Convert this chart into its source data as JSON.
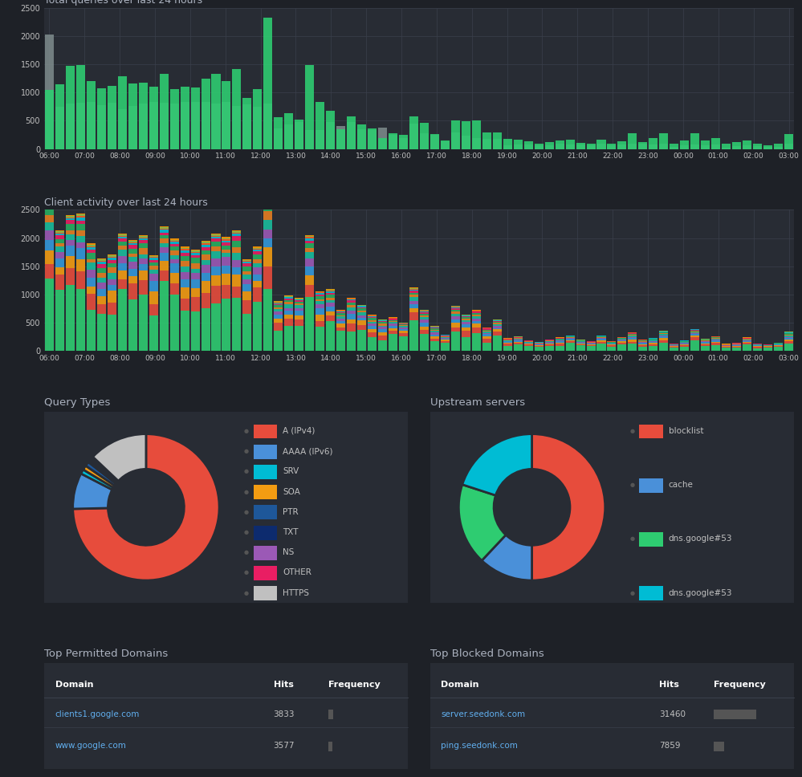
{
  "bg_color": "#1e2127",
  "panel_bg": "#282c34",
  "panel_border": "#3a3f4b",
  "text_color": "#c0c0c0",
  "title_color": "#abb2bf",
  "link_color": "#61afef",
  "grid_color": "#3a3f4b",
  "chart1_title": "Total queries over last 24 hours",
  "chart2_title": "Client activity over last 24 hours",
  "chart3_title": "Query Types",
  "chart4_title": "Upstream servers",
  "chart5_title": "Top Permitted Domains",
  "chart6_title": "Top Blocked Domains",
  "time_labels": [
    "06:00",
    "07:00",
    "08:00",
    "09:00",
    "10:00",
    "11:00",
    "12:00",
    "13:00",
    "14:00",
    "15:00",
    "16:00",
    "17:00",
    "18:00",
    "19:00",
    "20:00",
    "21:00",
    "22:00",
    "23:00",
    "00:00",
    "01:00",
    "02:00",
    "03:00"
  ],
  "q_green": [
    1050,
    1150,
    1470,
    1490,
    1200,
    1080,
    1120,
    1290,
    1160,
    1170,
    1110,
    1330,
    1060,
    1100,
    1090,
    1250,
    1330,
    1200,
    1420,
    900,
    1060,
    2330,
    560,
    640,
    520,
    1490,
    840,
    680,
    350,
    580,
    440,
    370,
    200,
    280,
    250,
    580,
    470,
    270,
    150,
    500,
    490,
    500,
    290,
    300,
    175,
    170,
    130,
    100,
    120,
    150,
    170,
    110,
    100,
    160,
    100,
    130,
    280,
    120,
    200,
    280,
    100,
    150,
    280,
    150,
    200,
    100,
    120,
    150,
    100,
    70,
    100,
    270
  ],
  "q_gray": [
    2020,
    750,
    800,
    820,
    830,
    770,
    820,
    700,
    760,
    800,
    840,
    820,
    800,
    830,
    830,
    830,
    800,
    830,
    760,
    790,
    750,
    800,
    370,
    430,
    480,
    330,
    330,
    480,
    400,
    480,
    350,
    330,
    380,
    250,
    200,
    450,
    280,
    250,
    130,
    290,
    230,
    200,
    180,
    180,
    70,
    80,
    80,
    60,
    70,
    100,
    80,
    80,
    60,
    90,
    60,
    80,
    100,
    100,
    80,
    100,
    40,
    60,
    80,
    70,
    80,
    30,
    50,
    60,
    50,
    40,
    40,
    100
  ],
  "ca_colors": [
    "#2ecc71",
    "#e74c3c",
    "#f39c12",
    "#3498db",
    "#9b59b6",
    "#1abc9c",
    "#e67e22",
    "#27ae60",
    "#e91e63",
    "#00bcd4",
    "#ff5722",
    "#8bc34a",
    "#ff9800"
  ],
  "qt_sizes": [
    75,
    8,
    1,
    1,
    1,
    0.5,
    0.5,
    0.5,
    13
  ],
  "qt_colors": [
    "#e74c3c",
    "#4a90d9",
    "#00bcd4",
    "#f39c12",
    "#1e5799",
    "#0d2b6e",
    "#9b59b6",
    "#e91e63",
    "#c0c0c0"
  ],
  "qt_labels": [
    "A (IPv4)",
    "AAAA (IPv6)",
    "SRV",
    "SOA",
    "PTR",
    "TXT",
    "NS",
    "OTHER",
    "HTTPS"
  ],
  "us_sizes": [
    50,
    12,
    18,
    20
  ],
  "us_colors": [
    "#e74c3c",
    "#4a90d9",
    "#2ecc71",
    "#00bcd4"
  ],
  "us_labels": [
    "blocklist",
    "cache",
    "dns.google#53",
    "dns.google#53"
  ],
  "permitted_domains": [
    "clients1.google.com",
    "www.google.com"
  ],
  "permitted_hits": [
    "3833",
    "3577"
  ],
  "permitted_freq": [
    0.08,
    0.07
  ],
  "blocked_domains": [
    "server.seedonk.com",
    "ping.seedonk.com"
  ],
  "blocked_hits": [
    "31460",
    "7859"
  ],
  "blocked_freq": [
    0.65,
    0.16
  ]
}
